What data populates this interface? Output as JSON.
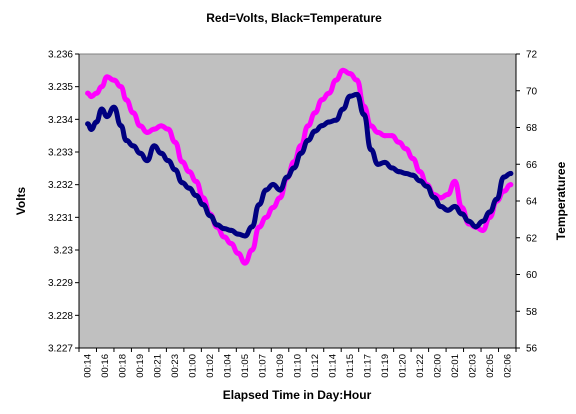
{
  "chart_data": {
    "type": "line",
    "title": "Red=Volts, Black=Temperature",
    "xlabel": "Elapsed Time in Day:Hour",
    "ylabel_left": "Volts",
    "ylabel_right": "Temperaturee",
    "ylim_left": [
      3.227,
      3.236
    ],
    "ylim_right": [
      56,
      72
    ],
    "yticks_left": [
      "3.227",
      "3.228",
      "3.229",
      "3.23",
      "3.231",
      "3.232",
      "3.233",
      "3.234",
      "3.235",
      "3.236"
    ],
    "yticks_right": [
      "56",
      "58",
      "60",
      "62",
      "64",
      "66",
      "68",
      "70",
      "72"
    ],
    "categories": [
      "00:14",
      "00:16",
      "00:18",
      "00:19",
      "00:21",
      "00:23",
      "01:00",
      "01:02",
      "01:04",
      "01:05",
      "01:07",
      "01:09",
      "01:10",
      "01:12",
      "01:14",
      "01:15",
      "01:17",
      "01:19",
      "01:20",
      "01:22",
      "02:00",
      "02:01",
      "02:03",
      "02:05",
      "02:06"
    ],
    "plot_background": "#c0c0c0",
    "grid": false,
    "legend": "none",
    "series": [
      {
        "axis": "left",
        "color": "#ff00ff",
        "x": [
          0,
          0.2,
          0.5,
          0.8,
          1.1,
          1.5,
          1.9,
          2.2,
          2.6,
          3.0,
          3.4,
          3.8,
          4.2,
          4.6,
          5.0,
          5.4,
          5.8,
          6.2,
          6.6,
          7.0,
          7.4,
          7.8,
          8.2,
          8.6,
          9.0,
          9.4,
          9.8,
          10.2,
          10.6,
          11.0,
          11.4,
          11.8,
          12.2,
          12.6,
          13.0,
          13.4,
          13.8,
          14.2,
          14.6,
          15.0,
          15.4,
          15.8,
          16.2,
          16.6,
          17.0,
          17.4,
          17.8,
          18.2,
          18.6,
          19.0,
          19.4,
          19.8,
          20.2,
          20.6,
          21.0,
          21.4,
          21.8,
          22.2,
          22.6,
          23.0,
          23.4,
          23.8,
          24.2
        ],
        "y": [
          3.2348,
          3.2347,
          3.2348,
          3.235,
          3.2353,
          3.2352,
          3.235,
          3.2346,
          3.2342,
          3.2338,
          3.2336,
          3.2337,
          3.2338,
          3.2337,
          3.2333,
          3.2327,
          3.2324,
          3.2321,
          3.2316,
          3.2311,
          3.2307,
          3.2304,
          3.2302,
          3.2299,
          3.2296,
          3.23,
          3.2307,
          3.231,
          3.2313,
          3.2316,
          3.2322,
          3.2327,
          3.2332,
          3.2338,
          3.2342,
          3.2346,
          3.2348,
          3.2352,
          3.2355,
          3.2354,
          3.2352,
          3.2344,
          3.2338,
          3.2336,
          3.2335,
          3.2335,
          3.2333,
          3.2331,
          3.2328,
          3.2324,
          3.232,
          3.2317,
          3.2316,
          3.2317,
          3.2321,
          3.2313,
          3.2308,
          3.2307,
          3.2306,
          3.231,
          3.2315,
          3.2318,
          3.232
        ]
      },
      {
        "axis": "right",
        "color": "#000080",
        "x": [
          0,
          0.2,
          0.5,
          0.8,
          1.1,
          1.5,
          1.9,
          2.2,
          2.6,
          3.0,
          3.4,
          3.8,
          4.2,
          4.6,
          5.0,
          5.4,
          5.8,
          6.2,
          6.6,
          7.0,
          7.4,
          7.8,
          8.2,
          8.6,
          9.0,
          9.4,
          9.8,
          10.2,
          10.6,
          11.0,
          11.4,
          11.8,
          12.2,
          12.6,
          13.0,
          13.4,
          13.8,
          14.2,
          14.6,
          15.0,
          15.4,
          15.8,
          16.2,
          16.6,
          17.0,
          17.4,
          17.8,
          18.2,
          18.6,
          19.0,
          19.4,
          19.8,
          20.2,
          20.6,
          21.0,
          21.4,
          21.8,
          22.2,
          22.6,
          23.0,
          23.4,
          23.8,
          24.2
        ],
        "y": [
          68.2,
          67.9,
          68.3,
          69.0,
          68.6,
          69.1,
          68.1,
          67.3,
          67.0,
          66.6,
          66.2,
          67.0,
          66.6,
          66.2,
          65.7,
          65.0,
          64.7,
          64.3,
          63.8,
          63.2,
          62.7,
          62.5,
          62.4,
          62.2,
          62.1,
          62.6,
          63.8,
          64.6,
          64.9,
          64.6,
          65.3,
          65.8,
          66.6,
          67.3,
          67.8,
          68.1,
          68.3,
          68.4,
          69.0,
          69.7,
          69.8,
          68.7,
          66.8,
          66.0,
          66.1,
          65.8,
          65.6,
          65.5,
          65.4,
          65.1,
          64.8,
          64.2,
          63.7,
          63.5,
          63.7,
          63.3,
          62.9,
          62.6,
          62.9,
          63.4,
          64.1,
          65.3,
          65.5
        ]
      }
    ]
  }
}
